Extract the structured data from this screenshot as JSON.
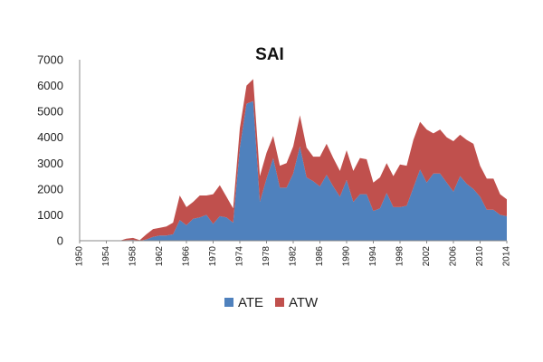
{
  "chart_data": {
    "type": "area",
    "stacked": true,
    "title": "SAI",
    "xlabel": "",
    "ylabel": "",
    "x": [
      1950,
      1951,
      1952,
      1953,
      1954,
      1955,
      1956,
      1957,
      1958,
      1959,
      1960,
      1961,
      1962,
      1963,
      1964,
      1965,
      1966,
      1967,
      1968,
      1969,
      1970,
      1971,
      1972,
      1973,
      1974,
      1975,
      1976,
      1977,
      1978,
      1979,
      1980,
      1981,
      1982,
      1983,
      1984,
      1985,
      1986,
      1987,
      1988,
      1989,
      1990,
      1991,
      1992,
      1993,
      1994,
      1995,
      1996,
      1997,
      1998,
      1999,
      2000,
      2001,
      2002,
      2003,
      2004,
      2005,
      2006,
      2007,
      2008,
      2009,
      2010,
      2011,
      2012,
      2013,
      2014
    ],
    "xlim": [
      1950,
      2014
    ],
    "ylim": [
      0,
      7000
    ],
    "x_ticks": [
      "1950",
      "1954",
      "1958",
      "1962",
      "1966",
      "1970",
      "1974",
      "1978",
      "1982",
      "1986",
      "1990",
      "1994",
      "1998",
      "2002",
      "2006",
      "2010",
      "2014"
    ],
    "y_ticks": [
      "0",
      "1000",
      "2000",
      "3000",
      "4000",
      "5000",
      "6000",
      "7000"
    ],
    "series": [
      {
        "name": "ATE",
        "color": "#4F81BD",
        "values": [
          0,
          0,
          0,
          0,
          0,
          0,
          0,
          20,
          30,
          0,
          50,
          150,
          200,
          200,
          250,
          800,
          600,
          850,
          900,
          1000,
          650,
          950,
          900,
          700,
          3600,
          5300,
          5400,
          1500,
          2400,
          3200,
          2050,
          2050,
          2600,
          3650,
          2450,
          2300,
          2100,
          2550,
          2100,
          1700,
          2350,
          1500,
          1800,
          1800,
          1150,
          1250,
          1850,
          1300,
          1300,
          1350,
          2050,
          2750,
          2250,
          2600,
          2600,
          2250,
          1900,
          2500,
          2200,
          2000,
          1700,
          1200,
          1200,
          1000,
          950
        ]
      },
      {
        "name": "ATW",
        "color": "#C0504D",
        "values": [
          0,
          0,
          0,
          0,
          0,
          0,
          0,
          60,
          80,
          20,
          200,
          300,
          300,
          350,
          450,
          950,
          700,
          650,
          850,
          750,
          1150,
          1200,
          800,
          550,
          750,
          700,
          850,
          1000,
          1000,
          850,
          850,
          950,
          1050,
          1200,
          1150,
          950,
          1150,
          1200,
          1100,
          1000,
          1150,
          1200,
          1400,
          1350,
          1100,
          1200,
          1150,
          1200,
          1650,
          1550,
          1850,
          1850,
          2050,
          1550,
          1700,
          1750,
          1950,
          1600,
          1700,
          1750,
          1200,
          1200,
          1200,
          800,
          650
        ]
      }
    ],
    "legend_position": "bottom",
    "grid": false
  }
}
